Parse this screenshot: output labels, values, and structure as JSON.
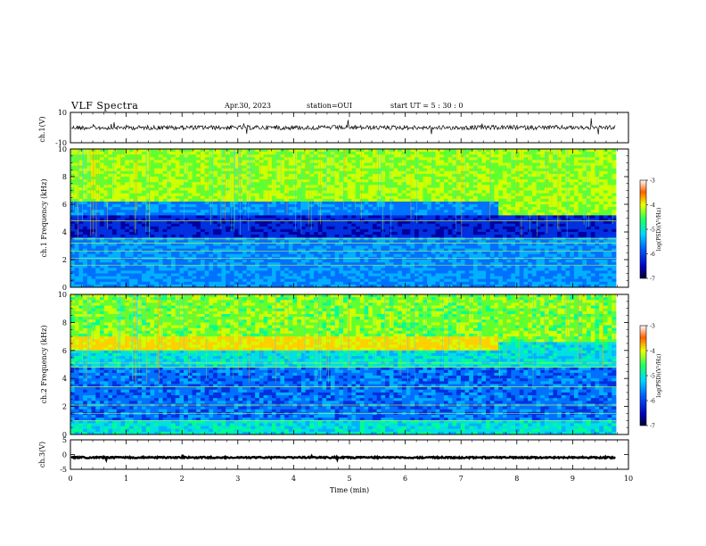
{
  "header": {
    "title": "VLF Spectra",
    "date": "Apr.30, 2023",
    "station": "station=OUI",
    "start": "start  UT =  5 : 30 : 0"
  },
  "chart_data": [
    {
      "type": "line",
      "panel": "ch1-waveform",
      "ylabel": "ch.1(V)",
      "ylim": [
        -10,
        10
      ],
      "y_ticks": [
        "10",
        "-10"
      ],
      "baseline": 0,
      "description_points": {
        "x_min": [
          0,
          9.8
        ],
        "amplitude_v": 1.5
      }
    },
    {
      "type": "heatmap",
      "panel": "ch1-spectrogram",
      "ylabel": "ch.1 Frequency (kHz)",
      "ylim": [
        0,
        10
      ],
      "y_ticks": [
        "0",
        "2",
        "4",
        "6",
        "8",
        "10"
      ],
      "xlim": [
        0,
        10
      ],
      "data_x_end": 9.8,
      "regime_change_min": 7.6,
      "colorbar": {
        "label": "log(PSD)(V²/Hz)",
        "ticks": [
          "-3",
          "-4",
          "-5",
          "-6",
          "-7"
        ],
        "range": [
          -7,
          -3
        ]
      }
    },
    {
      "type": "heatmap",
      "panel": "ch2-spectrogram",
      "ylabel": "ch.2 Frequency (kHz)",
      "ylim": [
        0,
        10
      ],
      "y_ticks": [
        "0",
        "2",
        "4",
        "6",
        "8",
        "10"
      ],
      "xlim": [
        0,
        10
      ],
      "data_x_end": 9.8,
      "regime_change_min": 7.6,
      "colorbar": {
        "label": "log(PSD)(V²/Hz)",
        "ticks": [
          "-3",
          "-4",
          "-5",
          "-6",
          "-7"
        ],
        "range": [
          -7,
          -3
        ]
      }
    },
    {
      "type": "line",
      "panel": "ch3-waveform",
      "ylabel": "ch.3(V)",
      "ylim": [
        -5,
        5
      ],
      "y_ticks": [
        "5",
        "0",
        "-5"
      ],
      "baseline": -1
    }
  ],
  "x_axis": {
    "label": "Time  (min)",
    "ticks": [
      "0",
      "1",
      "2",
      "3",
      "4",
      "5",
      "6",
      "7",
      "8",
      "9",
      "10"
    ]
  }
}
